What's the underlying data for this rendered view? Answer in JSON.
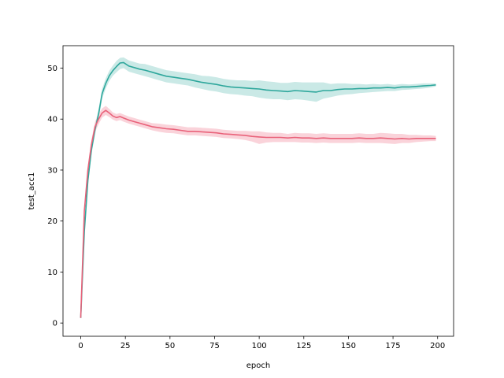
{
  "chart_data": {
    "type": "line",
    "title": "",
    "xlabel": "epoch",
    "ylabel": "test_acc1",
    "xlim": [
      -9.95,
      208.95
    ],
    "ylim": [
      -2.6,
      54.4
    ],
    "xticks": [
      0,
      25,
      50,
      75,
      100,
      125,
      150,
      175,
      200
    ],
    "yticks": [
      0,
      10,
      20,
      30,
      40,
      50
    ],
    "grid": false,
    "legend": "none",
    "series": [
      {
        "color": "#2ea79c",
        "band_color": "#b8e2de",
        "x": [
          0,
          2,
          4,
          6,
          8,
          10,
          12,
          14,
          16,
          18,
          20,
          22,
          24,
          27,
          30,
          33,
          36,
          40,
          44,
          48,
          52,
          56,
          60,
          64,
          68,
          72,
          76,
          80,
          84,
          88,
          92,
          96,
          100,
          104,
          108,
          112,
          116,
          120,
          124,
          128,
          132,
          136,
          140,
          144,
          148,
          152,
          156,
          160,
          164,
          168,
          172,
          176,
          180,
          184,
          188,
          192,
          196,
          199
        ],
        "y": [
          1,
          18,
          28,
          34,
          38,
          41,
          45,
          47,
          48.5,
          49.5,
          50.3,
          51,
          51.1,
          50.4,
          50.1,
          49.8,
          49.6,
          49.2,
          48.8,
          48.4,
          48.2,
          48,
          47.8,
          47.5,
          47.2,
          47,
          46.8,
          46.5,
          46.3,
          46.2,
          46.1,
          46,
          45.9,
          45.7,
          45.6,
          45.5,
          45.4,
          45.6,
          45.5,
          45.4,
          45.3,
          45.6,
          45.6,
          45.8,
          45.9,
          45.9,
          46,
          46,
          46.1,
          46.1,
          46.2,
          46.1,
          46.3,
          46.3,
          46.4,
          46.5,
          46.6,
          46.7
        ],
        "ci_lower": [
          1,
          17,
          27,
          33,
          37,
          40,
          44,
          46,
          47.5,
          48.5,
          49.2,
          49.8,
          50,
          49.3,
          49,
          48.7,
          48.4,
          48,
          47.6,
          47.2,
          47,
          46.8,
          46.6,
          46.2,
          45.9,
          45.6,
          45.4,
          45.1,
          44.9,
          44.8,
          44.6,
          44.5,
          44.2,
          44,
          43.9,
          43.9,
          43.7,
          43.9,
          43.8,
          43.6,
          43.4,
          44,
          44.3,
          44.6,
          44.8,
          44.9,
          45.1,
          45.2,
          45.3,
          45.4,
          45.5,
          45.5,
          45.7,
          45.8,
          45.9,
          46,
          46.2,
          46.4
        ],
        "ci_upper": [
          1,
          19,
          29,
          35,
          39,
          42,
          46,
          48,
          49.5,
          50.5,
          51.4,
          52,
          52.1,
          51.5,
          51.2,
          50.9,
          50.8,
          50.4,
          50,
          49.6,
          49.4,
          49.2,
          49,
          48.8,
          48.5,
          48.4,
          48.2,
          47.9,
          47.7,
          47.6,
          47.6,
          47.5,
          47.6,
          47.4,
          47.3,
          47.1,
          47.1,
          47.3,
          47.2,
          47.2,
          47.2,
          47.2,
          46.9,
          47,
          47,
          46.9,
          46.9,
          46.8,
          46.9,
          46.8,
          46.9,
          46.7,
          46.9,
          46.8,
          46.9,
          47,
          47,
          47
        ]
      },
      {
        "color": "#e9627a",
        "band_color": "#f8c4cd",
        "x": [
          0,
          2,
          4,
          6,
          8,
          10,
          12,
          14,
          16,
          18,
          20,
          22,
          24,
          27,
          30,
          33,
          36,
          40,
          44,
          48,
          52,
          56,
          60,
          64,
          68,
          72,
          76,
          80,
          84,
          88,
          92,
          96,
          100,
          104,
          108,
          112,
          116,
          120,
          124,
          128,
          132,
          136,
          140,
          144,
          148,
          152,
          156,
          160,
          164,
          168,
          172,
          176,
          180,
          184,
          188,
          192,
          196,
          199
        ],
        "y": [
          1,
          22,
          30,
          35,
          38.5,
          40,
          41.2,
          41.7,
          41.2,
          40.6,
          40.3,
          40.5,
          40.2,
          39.8,
          39.5,
          39.2,
          38.9,
          38.5,
          38.3,
          38.1,
          38,
          37.8,
          37.6,
          37.6,
          37.5,
          37.4,
          37.3,
          37.1,
          37,
          36.9,
          36.8,
          36.6,
          36.5,
          36.4,
          36.4,
          36.4,
          36.3,
          36.4,
          36.3,
          36.3,
          36.2,
          36.3,
          36.2,
          36.2,
          36.2,
          36.2,
          36.3,
          36.2,
          36.2,
          36.3,
          36.2,
          36.1,
          36.2,
          36.1,
          36.2,
          36.2,
          36.2,
          36.2
        ],
        "ci_lower": [
          1,
          21,
          29,
          34,
          37.5,
          39,
          40.3,
          40.8,
          40.4,
          39.9,
          39.6,
          39.8,
          39.5,
          39.1,
          38.8,
          38.5,
          38.2,
          37.8,
          37.5,
          37.3,
          37.2,
          37,
          36.8,
          36.8,
          36.7,
          36.6,
          36.5,
          36.3,
          36.2,
          36.1,
          35.9,
          35.6,
          35.1,
          35.4,
          35.5,
          35.5,
          35.5,
          35.5,
          35.4,
          35.4,
          35.3,
          35.4,
          35.3,
          35.3,
          35.3,
          35.3,
          35.4,
          35.3,
          35.3,
          35.3,
          35.2,
          35.1,
          35.3,
          35.3,
          35.5,
          35.6,
          35.7,
          35.7
        ],
        "ci_upper": [
          1,
          23,
          31,
          36,
          39.5,
          41,
          42.1,
          42.6,
          42,
          41.3,
          41,
          41.2,
          40.9,
          40.5,
          40.2,
          39.9,
          39.6,
          39.2,
          39.1,
          38.9,
          38.8,
          38.6,
          38.4,
          38.4,
          38.3,
          38.2,
          38.1,
          37.9,
          37.8,
          37.7,
          37.7,
          37.6,
          37.6,
          37.4,
          37.3,
          37.3,
          37.1,
          37.3,
          37.2,
          37.2,
          37.1,
          37.2,
          37.1,
          37.1,
          37.1,
          37.1,
          37.2,
          37.1,
          37.1,
          37.3,
          37.2,
          37.1,
          37.1,
          36.9,
          36.9,
          36.8,
          36.8,
          36.7
        ]
      }
    ]
  }
}
